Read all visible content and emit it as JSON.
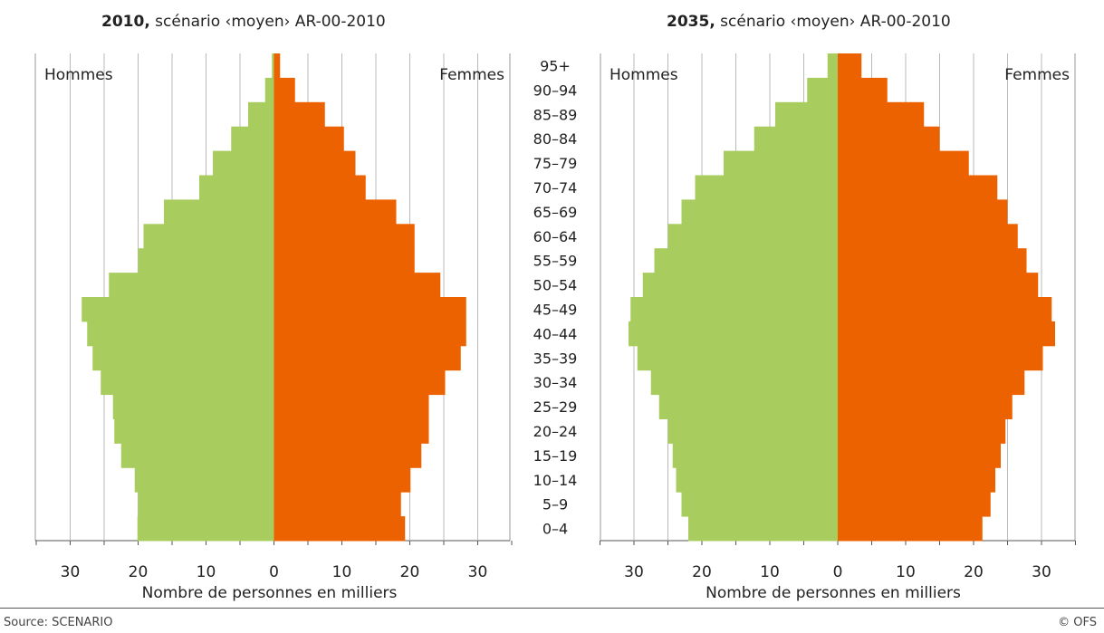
{
  "colors": {
    "hommes": "#a9cc5f",
    "femmes": "#ec6200",
    "grid": "#b9b9b9",
    "frame": "#9a9a9a"
  },
  "footer": {
    "source": "Source: SCENARIO",
    "copyright": "© OFS"
  },
  "chart_data": [
    {
      "type": "bar",
      "orientation": "horizontal",
      "subtype": "population-pyramid",
      "title_year": "2010,",
      "title_rest": " scénario ‹moyen›  AR-00-2010",
      "left_label": "Hommes",
      "right_label": "Femmes",
      "xlabel": "Nombre de personnes en milliers",
      "x_ticks": [
        "30",
        "20",
        "10",
        "0",
        "10",
        "20",
        "30"
      ],
      "xlim": [
        -35,
        35
      ],
      "grid": true,
      "categories": [
        "0–4",
        "5–9",
        "10–14",
        "15–19",
        "20–24",
        "25–29",
        "30–34",
        "35–39",
        "40–44",
        "45–49",
        "50–54",
        "55–59",
        "60–64",
        "65–69",
        "70–74",
        "75–79",
        "80–84",
        "85–89",
        "90–94",
        "95+"
      ],
      "series": [
        {
          "name": "Hommes",
          "values": [
            20.1,
            20.0,
            20.5,
            22.5,
            23.5,
            23.7,
            25.5,
            26.7,
            27.5,
            28.3,
            24.3,
            20.0,
            19.2,
            16.2,
            11.0,
            9.0,
            6.3,
            3.8,
            1.3,
            0.3
          ]
        },
        {
          "name": "Femmes",
          "values": [
            19.3,
            18.7,
            20.1,
            21.7,
            22.8,
            22.8,
            25.2,
            27.5,
            28.3,
            28.3,
            24.5,
            20.7,
            20.7,
            18.0,
            13.5,
            12.0,
            10.3,
            7.5,
            3.1,
            0.9
          ]
        }
      ]
    },
    {
      "type": "bar",
      "orientation": "horizontal",
      "subtype": "population-pyramid",
      "title_year": "2035,",
      "title_rest": " scénario ‹moyen› AR-00-2010",
      "left_label": "Hommes",
      "right_label": "Femmes",
      "xlabel": "Nombre de personnes en milliers",
      "x_ticks": [
        "30",
        "20",
        "10",
        "0",
        "10",
        "20",
        "30"
      ],
      "xlim": [
        -35,
        35
      ],
      "grid": true,
      "categories": [
        "0–4",
        "5–9",
        "10–14",
        "15–19",
        "20–24",
        "25–29",
        "30–34",
        "35–39",
        "40–44",
        "45–49",
        "50–54",
        "55–59",
        "60–64",
        "65–69",
        "70–74",
        "75–79",
        "80–84",
        "85–89",
        "90–94",
        "95+"
      ],
      "series": [
        {
          "name": "Hommes",
          "values": [
            22.0,
            23.0,
            23.8,
            24.3,
            25.0,
            26.3,
            27.5,
            29.5,
            30.8,
            30.5,
            28.7,
            27.0,
            25.0,
            23.0,
            21.0,
            16.8,
            12.3,
            9.2,
            4.5,
            1.5
          ]
        },
        {
          "name": "Femmes",
          "values": [
            21.3,
            22.5,
            23.2,
            24.0,
            24.7,
            25.7,
            27.5,
            30.2,
            32.0,
            31.5,
            29.5,
            27.8,
            26.5,
            25.0,
            23.5,
            19.3,
            15.0,
            12.7,
            7.3,
            3.5
          ]
        }
      ]
    }
  ]
}
